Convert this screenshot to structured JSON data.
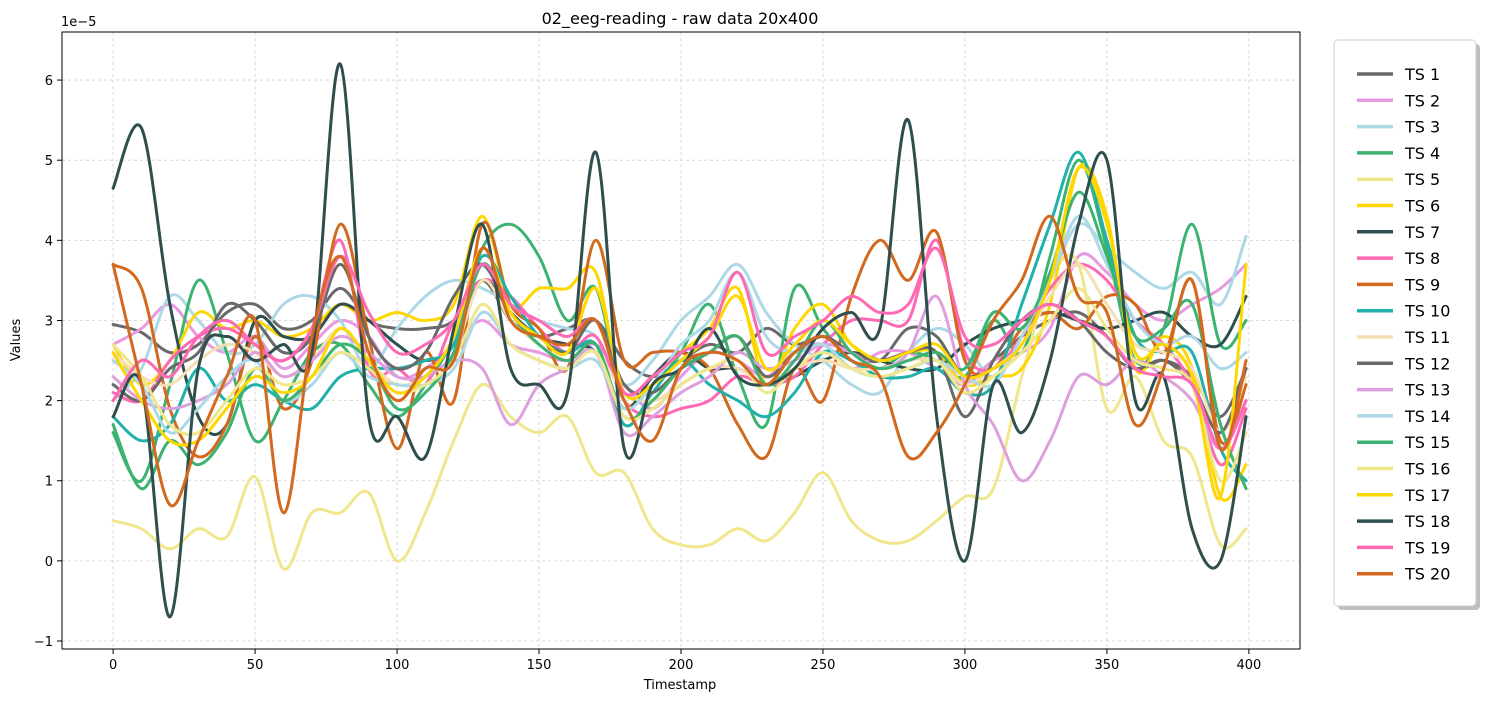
{
  "chart_data": {
    "type": "line",
    "title": "02_eeg-reading - raw data 20x400",
    "xlabel": "Timestamp",
    "ylabel": "Values",
    "offset_text": "1e−5",
    "xlim": [
      -18,
      418
    ],
    "ylim": [
      -1.1,
      6.6
    ],
    "xticks": [
      0,
      50,
      100,
      150,
      200,
      250,
      300,
      350,
      400
    ],
    "xtick_labels": [
      "0",
      "50",
      "100",
      "150",
      "200",
      "250",
      "300",
      "350",
      "400"
    ],
    "yticks": [
      -1,
      0,
      1,
      2,
      3,
      4,
      5,
      6
    ],
    "ytick_labels": [
      "−1",
      "0",
      "1",
      "2",
      "3",
      "4",
      "5",
      "6"
    ],
    "grid": true,
    "legend_position": "outside-right",
    "x": [
      0,
      10,
      20,
      30,
      40,
      50,
      60,
      70,
      80,
      90,
      100,
      110,
      120,
      130,
      140,
      150,
      160,
      170,
      180,
      190,
      200,
      210,
      220,
      230,
      240,
      250,
      260,
      270,
      280,
      290,
      300,
      310,
      320,
      330,
      340,
      350,
      360,
      370,
      380,
      390,
      399
    ],
    "series": [
      {
        "name": "TS 1",
        "color": "#696969",
        "values": [
          2.95,
          2.85,
          2.6,
          2.7,
          3.1,
          3.2,
          2.9,
          3.0,
          3.4,
          3.0,
          2.9,
          2.9,
          3.0,
          3.5,
          3.0,
          2.8,
          2.9,
          3.0,
          2.5,
          2.3,
          2.5,
          2.7,
          2.6,
          2.9,
          2.7,
          2.8,
          2.6,
          2.5,
          2.9,
          2.8,
          2.3,
          2.5,
          2.8,
          3.0,
          3.1,
          2.8,
          2.4,
          2.5,
          2.3,
          1.8,
          2.4
        ]
      },
      {
        "name": "TS 2",
        "color": "#e899e0",
        "values": [
          2.7,
          2.9,
          3.2,
          2.8,
          2.6,
          2.8,
          2.4,
          2.7,
          3.0,
          2.8,
          2.3,
          2.4,
          2.7,
          3.0,
          2.7,
          2.6,
          2.5,
          2.7,
          2.2,
          1.9,
          2.3,
          2.6,
          2.5,
          2.3,
          2.6,
          2.7,
          2.4,
          2.6,
          2.6,
          2.4,
          2.2,
          2.5,
          2.6,
          2.9,
          3.8,
          3.6,
          3.2,
          3.0,
          3.2,
          3.4,
          3.7
        ]
      },
      {
        "name": "TS 3",
        "color": "#add8e6",
        "values": [
          2.0,
          2.4,
          3.3,
          3.0,
          2.6,
          2.7,
          3.2,
          3.3,
          3.0,
          2.4,
          2.9,
          3.3,
          3.5,
          3.4,
          3.2,
          3.0,
          2.9,
          2.8,
          2.2,
          2.5,
          3.0,
          3.3,
          3.7,
          3.1,
          2.7,
          2.5,
          2.2,
          2.1,
          2.6,
          2.9,
          2.7,
          2.3,
          2.8,
          3.5,
          4.2,
          3.9,
          3.6,
          3.4,
          3.6,
          3.2,
          4.05
        ]
      },
      {
        "name": "TS 4",
        "color": "#3cb371",
        "values": [
          1.6,
          1.0,
          2.2,
          3.5,
          2.6,
          1.5,
          2.0,
          2.6,
          2.7,
          2.2,
          1.8,
          2.2,
          2.8,
          3.9,
          4.2,
          3.8,
          3.0,
          3.4,
          2.0,
          2.2,
          2.6,
          3.2,
          2.3,
          1.7,
          3.4,
          2.9,
          2.5,
          2.4,
          2.6,
          2.5,
          2.3,
          3.0,
          2.6,
          3.8,
          5.0,
          3.9,
          2.5,
          2.9,
          4.2,
          2.7,
          3.0
        ]
      },
      {
        "name": "TS 5",
        "color": "#f0e68c",
        "values": [
          0.5,
          0.4,
          0.15,
          0.4,
          0.3,
          1.05,
          -0.1,
          0.6,
          0.6,
          0.85,
          0.0,
          0.6,
          1.5,
          2.2,
          1.8,
          1.6,
          1.8,
          1.1,
          1.1,
          0.4,
          0.2,
          0.2,
          0.4,
          0.25,
          0.6,
          1.1,
          0.5,
          0.25,
          0.25,
          0.5,
          0.8,
          0.9,
          2.3,
          3.5,
          3.7,
          1.9,
          2.3,
          1.5,
          1.3,
          0.2,
          0.4
        ]
      },
      {
        "name": "TS 6",
        "color": "#ffd700",
        "values": [
          2.7,
          2.2,
          2.5,
          3.1,
          2.9,
          3.0,
          2.8,
          2.9,
          3.2,
          3.0,
          3.1,
          3.0,
          3.2,
          4.3,
          3.2,
          3.4,
          3.4,
          3.6,
          2.0,
          2.3,
          2.6,
          2.9,
          3.4,
          2.2,
          2.9,
          3.2,
          2.7,
          2.5,
          2.6,
          2.6,
          2.2,
          2.3,
          2.4,
          3.2,
          4.9,
          4.3,
          2.4,
          2.8,
          2.4,
          0.8,
          1.2
        ]
      },
      {
        "name": "TS 7",
        "color": "#2f4f4f",
        "values": [
          4.65,
          5.4,
          3.2,
          1.8,
          1.7,
          3.0,
          2.8,
          2.8,
          3.2,
          3.0,
          2.7,
          2.5,
          2.7,
          3.5,
          3.1,
          2.8,
          2.7,
          2.6,
          1.9,
          2.3,
          2.6,
          2.4,
          2.4,
          2.2,
          2.3,
          2.5,
          2.6,
          2.5,
          2.4,
          2.4,
          2.7,
          2.9,
          3.0,
          3.1,
          3.0,
          2.9,
          3.0,
          3.1,
          2.8,
          2.7,
          3.3
        ]
      },
      {
        "name": "TS 8",
        "color": "#ff69b4",
        "values": [
          2.1,
          2.0,
          2.5,
          2.8,
          2.9,
          2.7,
          2.5,
          2.9,
          4.0,
          2.4,
          2.4,
          2.2,
          3.0,
          3.5,
          3.3,
          2.9,
          2.6,
          2.8,
          2.0,
          1.8,
          1.9,
          2.0,
          2.3,
          2.2,
          2.3,
          2.7,
          3.0,
          3.0,
          3.0,
          4.0,
          2.6,
          2.4,
          2.8,
          3.4,
          3.7,
          3.5,
          3.0,
          2.7,
          2.2,
          1.2,
          1.9
        ]
      },
      {
        "name": "TS 9",
        "color": "#d2691e",
        "values": [
          3.7,
          3.4,
          1.9,
          1.3,
          1.7,
          2.8,
          1.9,
          2.5,
          4.2,
          2.8,
          1.4,
          2.6,
          2.0,
          4.2,
          3.2,
          2.9,
          2.4,
          4.0,
          2.5,
          2.6,
          2.6,
          2.4,
          1.7,
          1.3,
          2.4,
          2.0,
          3.3,
          4.0,
          3.5,
          4.1,
          2.5,
          2.4,
          2.9,
          3.1,
          2.9,
          3.3,
          3.2,
          2.6,
          3.5,
          1.5,
          2.2
        ]
      },
      {
        "name": "TS 10",
        "color": "#20b2aa",
        "values": [
          1.8,
          1.5,
          1.7,
          2.4,
          2.0,
          2.2,
          2.0,
          1.9,
          2.3,
          2.4,
          2.4,
          2.5,
          2.7,
          3.8,
          3.3,
          2.8,
          2.6,
          2.7,
          1.7,
          2.1,
          2.5,
          2.2,
          2.0,
          1.8,
          2.1,
          2.6,
          2.5,
          2.3,
          2.3,
          2.4,
          2.1,
          2.2,
          3.2,
          4.2,
          5.1,
          4.0,
          2.8,
          2.6,
          2.6,
          1.4,
          1.0
        ]
      },
      {
        "name": "TS 11",
        "color": "#f5deb3",
        "values": [
          2.6,
          2.3,
          2.2,
          2.5,
          2.7,
          2.6,
          2.3,
          2.5,
          2.9,
          2.5,
          2.2,
          2.3,
          2.6,
          3.5,
          3.0,
          2.7,
          2.5,
          2.6,
          2.1,
          2.0,
          2.2,
          2.4,
          2.4,
          2.2,
          2.4,
          2.5,
          2.4,
          2.4,
          2.5,
          2.5,
          2.2,
          2.4,
          2.7,
          3.3,
          3.7,
          3.2,
          2.7,
          2.6,
          2.4,
          1.6,
          2.3
        ]
      },
      {
        "name": "TS 12",
        "color": "#696969",
        "values": [
          2.2,
          2.0,
          2.4,
          2.6,
          3.2,
          3.0,
          2.6,
          2.8,
          3.7,
          2.8,
          2.4,
          2.6,
          3.3,
          3.7,
          3.1,
          2.8,
          2.6,
          3.0,
          2.2,
          2.1,
          2.4,
          2.6,
          2.8,
          2.3,
          2.6,
          2.8,
          2.6,
          2.5,
          2.6,
          2.6,
          1.8,
          2.5,
          3.0,
          3.2,
          3.0,
          2.6,
          2.4,
          2.5,
          2.2,
          1.6,
          2.4
        ]
      },
      {
        "name": "TS 13",
        "color": "#dda0dd",
        "values": [
          2.3,
          2.0,
          1.9,
          2.0,
          2.2,
          2.6,
          2.3,
          2.5,
          2.8,
          2.6,
          2.3,
          2.3,
          2.5,
          2.4,
          1.7,
          2.2,
          2.4,
          2.6,
          1.6,
          1.8,
          2.1,
          2.3,
          2.6,
          2.4,
          2.5,
          2.7,
          2.6,
          2.4,
          2.6,
          3.3,
          2.2,
          1.7,
          1.0,
          1.5,
          2.3,
          2.2,
          2.5,
          2.3,
          2.0,
          1.4,
          2.0
        ]
      },
      {
        "name": "TS 14",
        "color": "#add8e6",
        "values": [
          2.5,
          2.2,
          1.6,
          1.9,
          2.3,
          2.5,
          2.0,
          2.2,
          2.6,
          2.3,
          2.2,
          2.2,
          2.4,
          3.1,
          2.7,
          2.5,
          2.4,
          2.5,
          1.9,
          2.2,
          2.7,
          3.0,
          3.6,
          2.8,
          2.6,
          2.7,
          2.4,
          2.3,
          2.4,
          2.5,
          2.3,
          2.2,
          2.8,
          3.5,
          4.3,
          3.7,
          3.0,
          2.7,
          2.8,
          2.4,
          2.6
        ]
      },
      {
        "name": "TS 15",
        "color": "#3cb371",
        "values": [
          1.7,
          0.9,
          1.5,
          1.2,
          1.6,
          2.4,
          2.0,
          2.3,
          2.7,
          2.5,
          1.9,
          2.1,
          2.6,
          3.7,
          3.1,
          2.7,
          2.5,
          2.7,
          1.8,
          2.0,
          2.4,
          2.6,
          2.8,
          2.2,
          2.5,
          3.0,
          2.6,
          2.4,
          2.5,
          2.6,
          2.4,
          3.1,
          2.9,
          3.6,
          4.6,
          3.8,
          2.8,
          2.9,
          3.2,
          1.7,
          0.9
        ]
      },
      {
        "name": "TS 16",
        "color": "#f0e68c",
        "values": [
          2.7,
          2.3,
          1.7,
          1.6,
          2.0,
          2.4,
          2.2,
          2.3,
          2.6,
          2.4,
          2.1,
          2.2,
          2.5,
          3.2,
          2.7,
          2.5,
          2.4,
          2.6,
          1.8,
          1.9,
          2.2,
          2.4,
          2.5,
          2.1,
          2.4,
          2.6,
          2.4,
          2.3,
          2.4,
          2.5,
          2.1,
          2.3,
          2.6,
          3.0,
          3.4,
          2.9,
          2.5,
          2.4,
          2.2,
          1.0,
          1.6
        ]
      },
      {
        "name": "TS 17",
        "color": "#ffd700",
        "values": [
          2.6,
          2.0,
          1.5,
          1.5,
          1.9,
          2.3,
          2.1,
          2.3,
          2.9,
          2.5,
          2.1,
          2.3,
          2.8,
          3.9,
          3.1,
          2.8,
          2.6,
          3.4,
          2.1,
          2.2,
          2.5,
          2.8,
          3.3,
          2.4,
          2.7,
          3.0,
          2.7,
          2.5,
          2.6,
          2.7,
          2.3,
          2.4,
          2.7,
          3.5,
          4.9,
          4.2,
          2.6,
          2.7,
          2.3,
          0.8,
          3.7
        ]
      },
      {
        "name": "TS 18",
        "color": "#2f4f4f",
        "values": [
          1.8,
          2.2,
          -0.7,
          2.4,
          2.8,
          2.5,
          2.7,
          2.6,
          6.2,
          1.8,
          1.8,
          1.3,
          2.9,
          4.2,
          2.4,
          2.2,
          2.1,
          5.1,
          1.4,
          2.2,
          2.4,
          2.9,
          2.3,
          2.2,
          2.4,
          2.9,
          3.1,
          2.9,
          5.5,
          1.8,
          0.0,
          2.2,
          1.6,
          2.5,
          4.2,
          5.0,
          2.0,
          2.3,
          0.4,
          0.0,
          1.8
        ]
      },
      {
        "name": "TS 19",
        "color": "#ff69b4",
        "values": [
          2.0,
          2.5,
          2.3,
          2.8,
          3.0,
          2.7,
          2.5,
          2.9,
          3.8,
          3.1,
          2.6,
          2.7,
          3.0,
          3.7,
          3.2,
          3.0,
          2.8,
          3.0,
          2.1,
          2.3,
          2.6,
          2.8,
          3.6,
          2.6,
          2.8,
          3.0,
          3.3,
          3.1,
          3.2,
          3.9,
          2.8,
          2.7,
          3.0,
          3.2,
          3.0,
          2.8,
          2.4,
          2.3,
          2.2,
          1.4,
          2.0
        ]
      },
      {
        "name": "TS 20",
        "color": "#d2691e",
        "values": [
          3.7,
          2.2,
          0.7,
          1.5,
          2.3,
          3.0,
          0.6,
          2.8,
          3.8,
          2.6,
          2.0,
          2.4,
          2.5,
          3.9,
          3.0,
          2.8,
          2.7,
          3.0,
          2.0,
          1.5,
          2.4,
          2.6,
          2.5,
          2.2,
          2.6,
          2.8,
          2.5,
          2.3,
          1.3,
          1.6,
          2.2,
          3.0,
          3.5,
          4.3,
          3.3,
          3.1,
          1.7,
          2.4,
          3.5,
          1.4,
          2.5
        ]
      }
    ]
  }
}
